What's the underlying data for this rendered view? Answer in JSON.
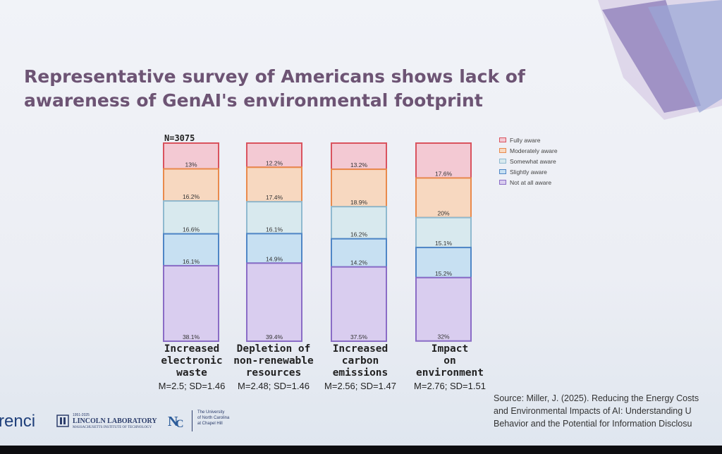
{
  "title_line1": "Representative survey of Americans shows lack of",
  "title_line2": "awareness of GenAI's environmental footprint",
  "n_label": "N=3075",
  "colors": {
    "fully": "#f3c9d3",
    "fully_border": "#d9535e",
    "moderately": "#f7d8c0",
    "moderately_border": "#e98a4c",
    "somewhat": "#d8e9ee",
    "somewhat_border": "#8fb9cf",
    "slightly": "#c7e0f2",
    "slightly_border": "#4f86c6",
    "not": "#d9cdef",
    "not_border": "#8a6cc6",
    "title": "#6d5474"
  },
  "chart_data": {
    "type": "bar",
    "stacked": true,
    "title": "Representative survey of Americans shows lack of awareness of GenAI's environmental footprint",
    "categories": [
      "Increased electronic waste",
      "Depletion of non-renewable resources",
      "Increased carbon emissions",
      "Impact on environment"
    ],
    "series": [
      {
        "name": "Fully aware",
        "values": [
          13,
          12.2,
          13.2,
          17.6
        ],
        "labels": [
          "13%",
          "12.2%",
          "13.2%",
          "17.6%"
        ]
      },
      {
        "name": "Moderately aware",
        "values": [
          16.2,
          17.4,
          18.9,
          20
        ],
        "labels": [
          "16.2%",
          "17.4%",
          "18.9%",
          "20%"
        ]
      },
      {
        "name": "Somewhat aware",
        "values": [
          16.6,
          16.1,
          16.2,
          15.1
        ],
        "labels": [
          "16.6%",
          "16.1%",
          "16.2%",
          "15.1%"
        ]
      },
      {
        "name": "Slightly aware",
        "values": [
          16.1,
          14.9,
          14.2,
          15.2
        ],
        "labels": [
          "16.1%",
          "14.9%",
          "14.2%",
          "15.2%"
        ]
      },
      {
        "name": "Not at all aware",
        "values": [
          38.1,
          39.4,
          37.5,
          32
        ],
        "labels": [
          "38.1%",
          "39.4%",
          "37.5%",
          "32%"
        ]
      }
    ],
    "ylim": [
      0,
      100
    ],
    "legend_position": "right"
  },
  "categories_display": [
    {
      "label": "Increased\nelectronic\nwaste",
      "stats": "M=2.5; SD=1.46"
    },
    {
      "label": "Depletion of\nnon-renewable\nresources",
      "stats": "M=2.48; SD=1.46"
    },
    {
      "label": "Increased\ncarbon\nemissions",
      "stats": "M=2.56; SD=1.47"
    },
    {
      "label": "Impact\non\nenvironment",
      "stats": "M=2.76; SD=1.51"
    }
  ],
  "source": {
    "line1": "Source: Miller, J. (2025). Reducing the Energy Costs",
    "line2": "and Environmental Impacts of AI: Understanding U",
    "line3": "Behavior and the Potential for Information Disclosu"
  },
  "logos": {
    "renci": "renci",
    "lincoln_small": "1951-2025",
    "lincoln_main": "LINCOLN LABORATORY",
    "lincoln_sub": "MASSACHUSETTS INSTITUTE OF TECHNOLOGY",
    "unc_line1": "The University",
    "unc_line2": "of North Carolina",
    "unc_line3": "at Chapel Hill"
  }
}
